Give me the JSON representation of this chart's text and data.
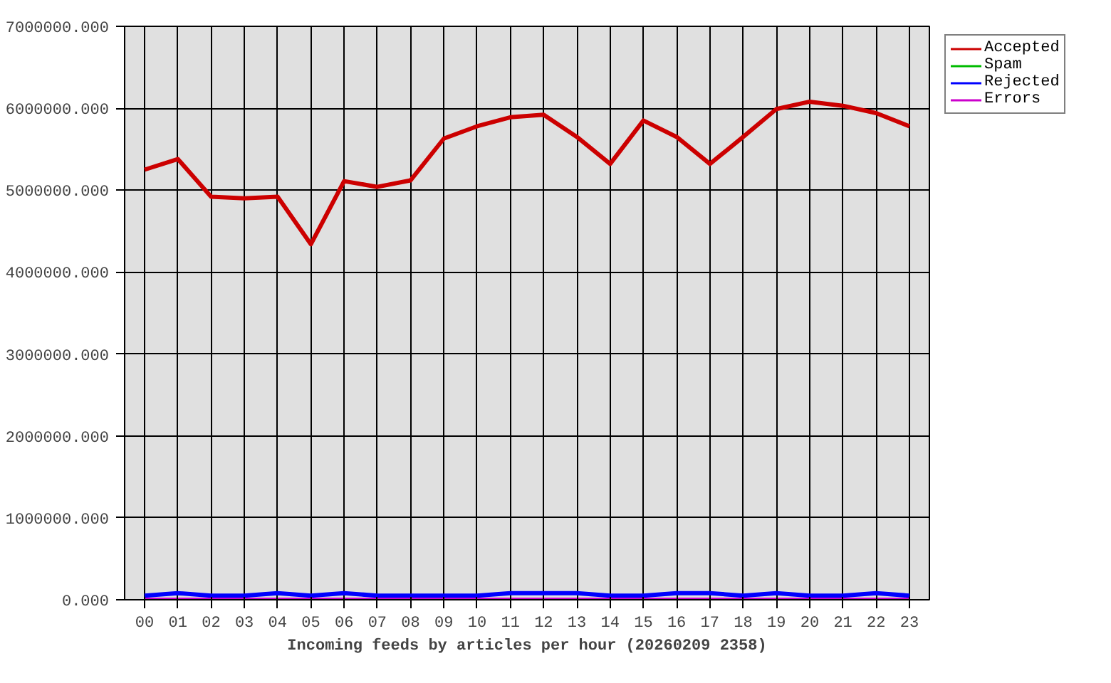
{
  "chart_data": {
    "type": "line",
    "xlabel": "Incoming feeds by articles per hour (20260209 2358)",
    "categories": [
      "00",
      "01",
      "02",
      "03",
      "04",
      "05",
      "06",
      "07",
      "08",
      "09",
      "10",
      "11",
      "12",
      "13",
      "14",
      "15",
      "16",
      "17",
      "18",
      "19",
      "20",
      "21",
      "22",
      "23"
    ],
    "series": [
      {
        "name": "Accepted",
        "color": "#cc0000",
        "values": [
          5250000,
          5380000,
          4920000,
          4900000,
          4920000,
          4340000,
          5110000,
          5040000,
          5120000,
          5630000,
          5780000,
          5890000,
          5920000,
          5650000,
          5320000,
          5850000,
          5650000,
          5320000,
          5650000,
          5990000,
          6080000,
          6030000,
          5940000,
          5780000
        ]
      },
      {
        "name": "Spam",
        "color": "#00bb00",
        "values": [
          null,
          null,
          null,
          null,
          null,
          null,
          null,
          null,
          null,
          null,
          null,
          null,
          null,
          null,
          null,
          null,
          null,
          null,
          null,
          null,
          null,
          null,
          null,
          null
        ]
      },
      {
        "name": "Rejected",
        "color": "#0000ff",
        "values": [
          50000,
          80000,
          50000,
          50000,
          80000,
          50000,
          80000,
          50000,
          50000,
          50000,
          50000,
          80000,
          80000,
          80000,
          50000,
          50000,
          80000,
          80000,
          50000,
          80000,
          50000,
          50000,
          80000,
          50000
        ]
      },
      {
        "name": "Errors",
        "color": "#cc00cc",
        "values": [
          0,
          0,
          0,
          0,
          0,
          0,
          0,
          0,
          0,
          0,
          0,
          0,
          0,
          0,
          0,
          0,
          0,
          0,
          0,
          0,
          0,
          0,
          0,
          0
        ]
      }
    ],
    "ylim": [
      0,
      7000000
    ],
    "yticks": [
      {
        "value": 0,
        "label": "0.000"
      },
      {
        "value": 1000000,
        "label": "1000000.000"
      },
      {
        "value": 2000000,
        "label": "2000000.000"
      },
      {
        "value": 3000000,
        "label": "3000000.000"
      },
      {
        "value": 4000000,
        "label": "4000000.000"
      },
      {
        "value": 5000000,
        "label": "5000000.000"
      },
      {
        "value": 6000000,
        "label": "6000000.000"
      },
      {
        "value": 7000000,
        "label": "7000000.000"
      }
    ],
    "grid": true,
    "legend": "top right",
    "marker": "none",
    "line_style": "solid"
  }
}
